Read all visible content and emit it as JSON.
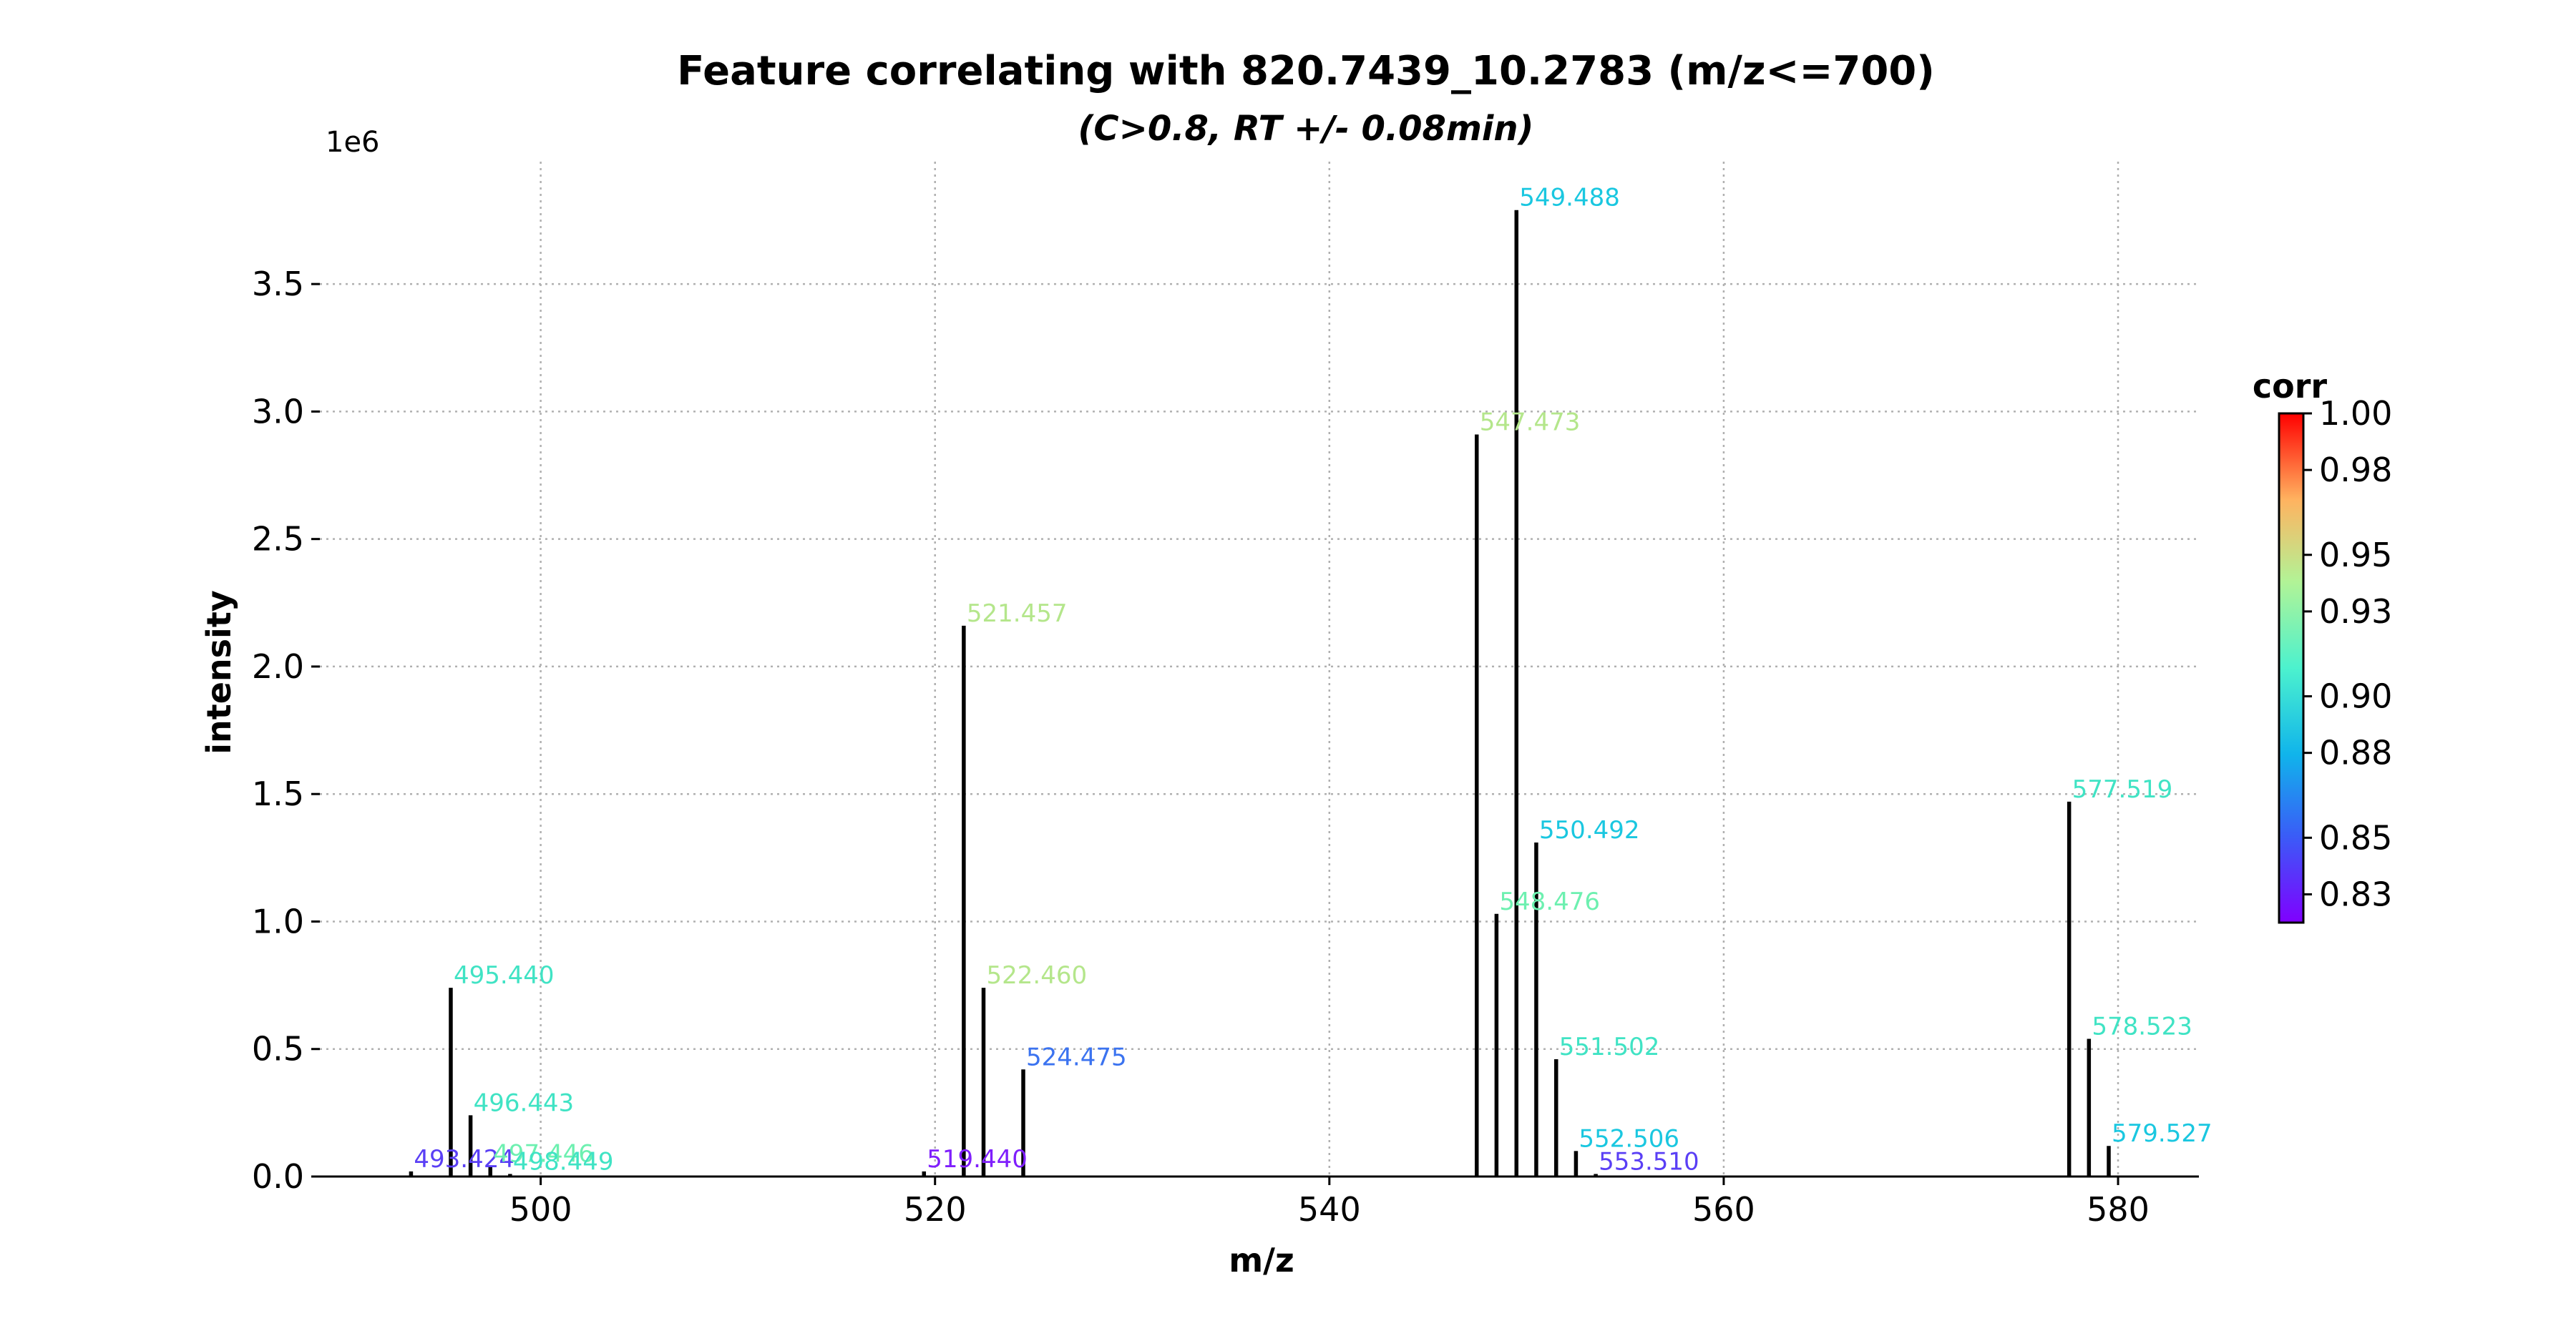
{
  "chart_data": {
    "type": "stem",
    "title": "Feature correlating with 820.7439_10.2783 (m/z<=700)",
    "subtitle": "(C>0.8, RT +/- 0.08min)",
    "xlabel": "m/z",
    "ylabel": "intensity",
    "y_offset_label": "1e6",
    "xlim": [
      488.8,
      584.1
    ],
    "ylim": [
      0,
      3.98
    ],
    "x_ticks": [
      500,
      520,
      540,
      560,
      580
    ],
    "y_ticks": [
      0.0,
      0.5,
      1.0,
      1.5,
      2.0,
      2.5,
      3.0,
      3.5
    ],
    "y_tick_labels": [
      "0.0",
      "0.5",
      "1.0",
      "1.5",
      "2.0",
      "2.5",
      "3.0",
      "3.5"
    ],
    "grid": true,
    "colorbar": {
      "label": "corr",
      "min": 0.82,
      "max": 1.0,
      "colormap": "rainbow",
      "ticks": [
        0.83,
        0.85,
        0.88,
        0.9,
        0.93,
        0.95,
        0.98,
        1.0
      ],
      "tick_labels": [
        "0.83",
        "0.85",
        "0.88",
        "0.90",
        "0.93",
        "0.95",
        "0.98",
        "1.00"
      ]
    },
    "peaks": [
      {
        "label": "493.424",
        "mz": 493.424,
        "intensity": 0.02,
        "color": "#5a3ff5"
      },
      {
        "label": "495.440",
        "mz": 495.44,
        "intensity": 0.74,
        "color": "#40e3c4"
      },
      {
        "label": "496.443",
        "mz": 496.443,
        "intensity": 0.24,
        "color": "#40e3c4"
      },
      {
        "label": "497.446",
        "mz": 497.446,
        "intensity": 0.04,
        "color": "#6df0b0"
      },
      {
        "label": "498.449",
        "mz": 498.449,
        "intensity": 0.01,
        "color": "#40e3c4"
      },
      {
        "label": "519.440",
        "mz": 519.44,
        "intensity": 0.02,
        "color": "#7f1ffc"
      },
      {
        "label": "521.457",
        "mz": 521.457,
        "intensity": 2.16,
        "color": "#b4e68b"
      },
      {
        "label": "522.460",
        "mz": 522.46,
        "intensity": 0.74,
        "color": "#b4e68b"
      },
      {
        "label": "524.475",
        "mz": 524.475,
        "intensity": 0.42,
        "color": "#3b73f0"
      },
      {
        "label": "547.473",
        "mz": 547.473,
        "intensity": 2.91,
        "color": "#b4e68b"
      },
      {
        "label": "548.476",
        "mz": 548.476,
        "intensity": 1.03,
        "color": "#6df0b0"
      },
      {
        "label": "549.488",
        "mz": 549.488,
        "intensity": 3.79,
        "color": "#1ac7e0"
      },
      {
        "label": "550.492",
        "mz": 550.492,
        "intensity": 1.31,
        "color": "#1ac7e0"
      },
      {
        "label": "551.502",
        "mz": 551.502,
        "intensity": 0.46,
        "color": "#40e3c4"
      },
      {
        "label": "552.506",
        "mz": 552.506,
        "intensity": 0.1,
        "color": "#1ac7e0"
      },
      {
        "label": "553.510",
        "mz": 553.51,
        "intensity": 0.01,
        "color": "#5a3ff5"
      },
      {
        "label": "577.519",
        "mz": 577.519,
        "intensity": 1.47,
        "color": "#40e3c4"
      },
      {
        "label": "578.523",
        "mz": 578.523,
        "intensity": 0.54,
        "color": "#40e3c4"
      },
      {
        "label": "579.527",
        "mz": 579.527,
        "intensity": 0.12,
        "color": "#1ac7e0"
      }
    ]
  }
}
